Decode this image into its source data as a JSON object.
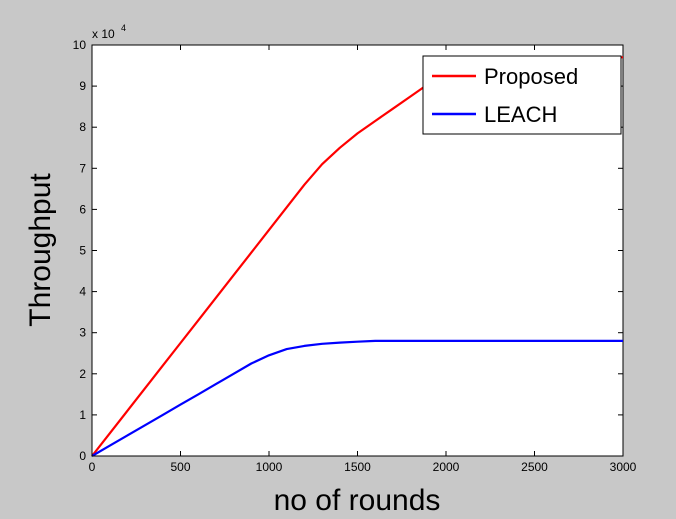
{
  "chart_data": {
    "type": "line",
    "xlabel": "no of rounds",
    "ylabel": "Throughput",
    "y_multiplier_label": "x 10",
    "y_multiplier_exponent": "4",
    "xlim": [
      0,
      3000
    ],
    "ylim": [
      0,
      10
    ],
    "x_ticks": [
      "0",
      "500",
      "1000",
      "1500",
      "2000",
      "2500",
      "3000"
    ],
    "y_ticks": [
      "0",
      "1",
      "2",
      "3",
      "4",
      "5",
      "6",
      "7",
      "8",
      "9",
      "10"
    ],
    "grid": false,
    "legend_position": "top-right",
    "series": [
      {
        "name": "Proposed",
        "color": "#ff0000",
        "x": [
          0,
          100,
          200,
          300,
          400,
          500,
          600,
          700,
          800,
          900,
          1000,
          1100,
          1200,
          1300,
          1400,
          1500,
          1600,
          1700,
          1800,
          1900,
          2000,
          2100,
          2200,
          2300,
          2400,
          2500,
          2600,
          2700,
          2800,
          2900,
          3000
        ],
        "values": [
          0,
          0.55,
          1.1,
          1.65,
          2.2,
          2.75,
          3.3,
          3.85,
          4.4,
          4.95,
          5.5,
          6.05,
          6.6,
          7.1,
          7.5,
          7.85,
          8.15,
          8.45,
          8.75,
          9.05,
          9.3,
          9.5,
          9.62,
          9.68,
          9.7,
          9.7,
          9.7,
          9.7,
          9.7,
          9.7,
          9.7
        ]
      },
      {
        "name": "LEACH",
        "color": "#0000ff",
        "x": [
          0,
          100,
          200,
          300,
          400,
          500,
          600,
          700,
          800,
          900,
          1000,
          1100,
          1200,
          1300,
          1400,
          1500,
          1600,
          1800,
          2000,
          2500,
          3000
        ],
        "values": [
          0,
          0.25,
          0.5,
          0.75,
          1.0,
          1.25,
          1.5,
          1.75,
          2.0,
          2.25,
          2.45,
          2.6,
          2.68,
          2.73,
          2.76,
          2.78,
          2.8,
          2.8,
          2.8,
          2.8,
          2.8
        ]
      }
    ]
  }
}
